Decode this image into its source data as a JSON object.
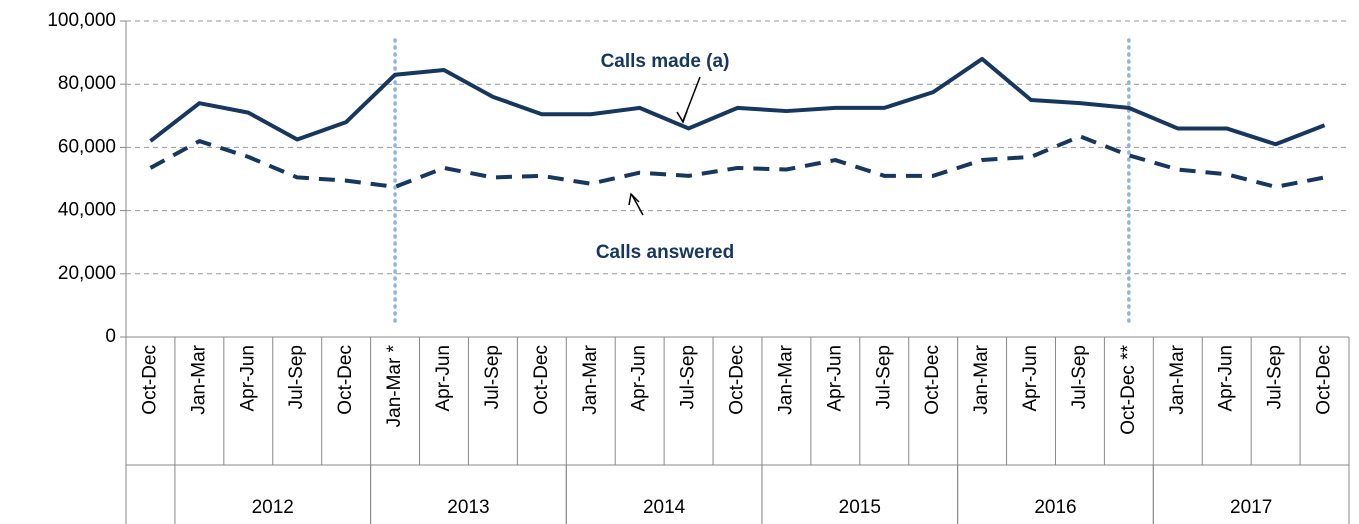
{
  "chart_data": {
    "type": "line",
    "categories": [
      "Oct-Dec",
      "Jan-Mar",
      "Apr-Jun",
      "Jul-Sep",
      "Oct-Dec",
      "Jan-Mar *",
      "Apr-Jun",
      "Jul-Sep",
      "Oct-Dec",
      "Jan-Mar",
      "Apr-Jun",
      "Jul-Sep",
      "Oct-Dec",
      "Jan-Mar",
      "Apr-Jun",
      "Jul-Sep",
      "Oct-Dec",
      "Jan-Mar",
      "Apr-Jun",
      "Jul-Sep",
      "Oct-Dec **",
      "Jan-Mar",
      "Apr-Jun",
      "Jul-Sep",
      "Oct-Dec"
    ],
    "groups": [
      {
        "label": "2012",
        "size": 4
      },
      {
        "label": "2013",
        "size": 4
      },
      {
        "label": "2014",
        "size": 4
      },
      {
        "label": "2015",
        "size": 4
      },
      {
        "label": "2016",
        "size": 4
      },
      {
        "label": "2017",
        "size": 4
      }
    ],
    "series": [
      {
        "name": "Calls made (a)",
        "color": "#17375e",
        "dash": "solid",
        "values": [
          62000,
          74000,
          71000,
          62500,
          68000,
          83000,
          84500,
          76000,
          70500,
          70500,
          72500,
          66000,
          72500,
          71500,
          72500,
          72500,
          77500,
          88000,
          75000,
          74000,
          72500,
          66000,
          66000,
          61000,
          67000
        ]
      },
      {
        "name": "Calls answered",
        "color": "#17375e",
        "dash": "dashed",
        "values": [
          53500,
          62000,
          57000,
          50500,
          49500,
          47500,
          53500,
          50500,
          51000,
          48500,
          52000,
          51000,
          53500,
          53000,
          56000,
          51000,
          51000,
          56000,
          57000,
          63500,
          57500,
          53000,
          51500,
          47500,
          50500
        ]
      }
    ],
    "highlight_categories": [
      5,
      20
    ],
    "highlight_color": "#8db4e2",
    "ylim": [
      0,
      100000
    ],
    "yticks": [
      0,
      {
        "value": 20000,
        "label": "20,000"
      },
      {
        "value": 40000,
        "label": "40,000"
      },
      {
        "value": 60000,
        "label": "60,000"
      },
      {
        "value": 80000,
        "label": "80,000"
      },
      {
        "value": 100000,
        "label": "100,000"
      }
    ],
    "grid": true
  }
}
